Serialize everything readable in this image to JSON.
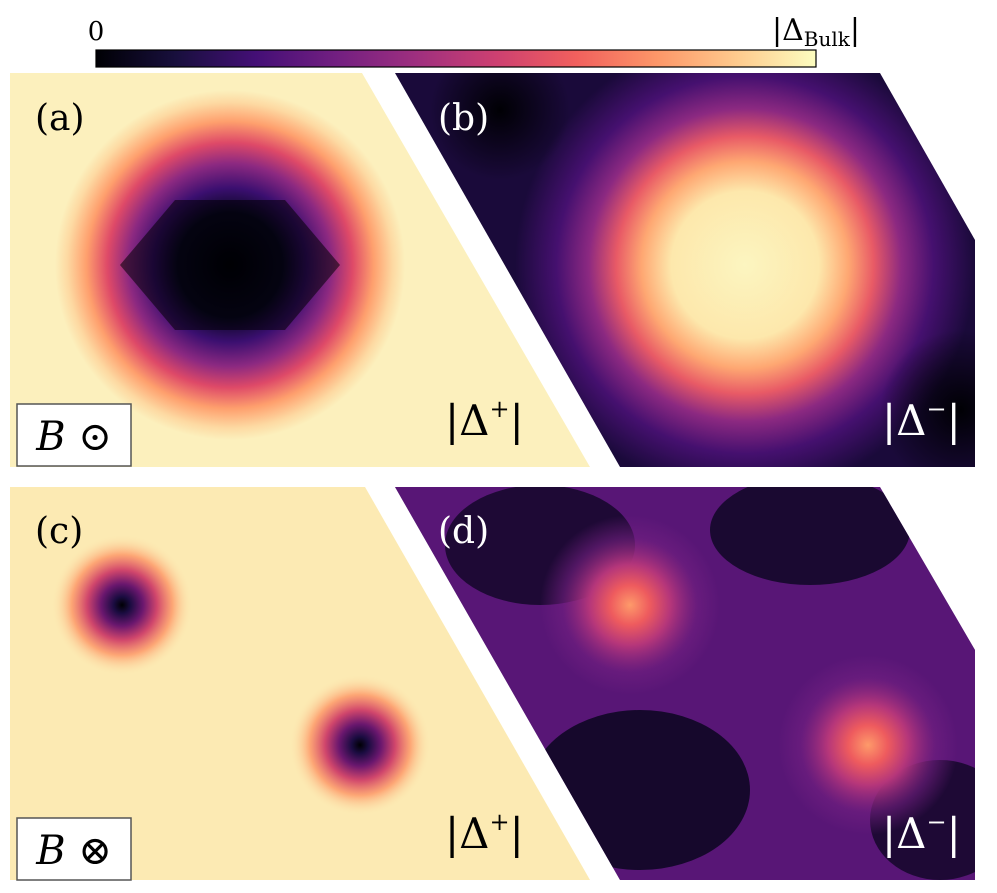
{
  "colorbar": {
    "min_label": "0",
    "max_label_main": "|Δ",
    "max_label_sub": "Bulk",
    "max_label_end": "|",
    "colormap": "magma",
    "stops": [
      "#000004",
      "#180f3d",
      "#440f76",
      "#721f81",
      "#9e2f7f",
      "#cd4071",
      "#f1605d",
      "#fd9668",
      "#feca8d",
      "#fcfdbf"
    ]
  },
  "panels": [
    {
      "id": "a",
      "label": "(a)",
      "quantity": "|Δ",
      "quantity_sup": "+",
      "quantity_end": "|",
      "quantity_color": "#000000",
      "field_box": "B ⊙",
      "pattern": "single vortex (dark core)"
    },
    {
      "id": "b",
      "label": "(b)",
      "quantity": "|Δ",
      "quantity_sup": "−",
      "quantity_end": "|",
      "quantity_color": "#ffffff",
      "pattern": "single bright core"
    },
    {
      "id": "c",
      "label": "(c)",
      "quantity": "|Δ",
      "quantity_sup": "+",
      "quantity_end": "|",
      "quantity_color": "#000000",
      "field_box": "B ⊗",
      "pattern": "two vortices (dark cores)"
    },
    {
      "id": "d",
      "label": "(d)",
      "quantity": "|Δ",
      "quantity_sup": "−",
      "quantity_end": "|",
      "quantity_color": "#ffffff",
      "pattern": "two bright spots"
    }
  ]
}
